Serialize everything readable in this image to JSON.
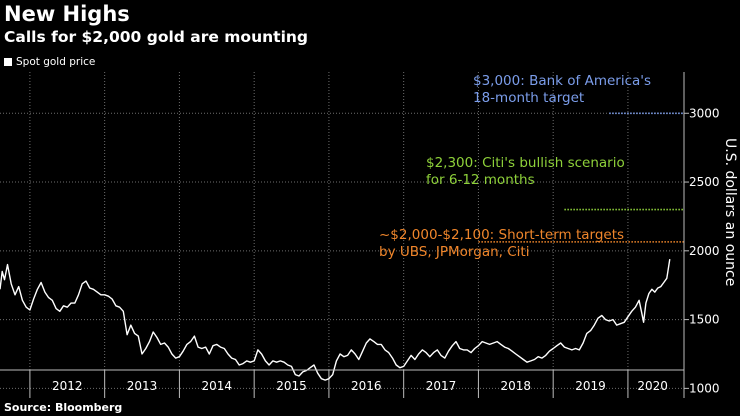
{
  "title": "New Highs",
  "subtitle": "Calls for $2,000 gold are mounting",
  "legend_label": "Spot gold price",
  "source": "Source: Bloomberg",
  "colors": {
    "background": "#000000",
    "line": "#ffffff",
    "grid": "#6e6e6e",
    "bofa": "#7b9dea",
    "citi": "#8ed13a",
    "ubs": "#f0862b"
  },
  "chart_data": {
    "type": "line",
    "title": "New Highs",
    "subtitle": "Calls for $2,000 gold are mounting",
    "ylabel": "U.S. dollars an ounce",
    "xlabel": "",
    "ylim": [
      930,
      3300
    ],
    "xlim": [
      2011.6,
      2020.75
    ],
    "y_ticks": [
      1000,
      1500,
      2000,
      2500,
      3000
    ],
    "y_tick_labels": [
      "1000",
      "1500",
      "2000",
      "2500",
      "3000"
    ],
    "x_year_boundaries": [
      2012,
      2013,
      2014,
      2015,
      2016,
      2017,
      2018,
      2019,
      2020
    ],
    "x_tick_labels": [
      {
        "label": "2012",
        "year": 2012.5
      },
      {
        "label": "2013",
        "year": 2013.5
      },
      {
        "label": "2014",
        "year": 2014.5
      },
      {
        "label": "2015",
        "year": 2015.5
      },
      {
        "label": "2016",
        "year": 2016.5
      },
      {
        "label": "2017",
        "year": 2017.5
      },
      {
        "label": "2018",
        "year": 2018.5
      },
      {
        "label": "2019",
        "year": 2019.5
      },
      {
        "label": "2020",
        "year": 2020.33
      }
    ],
    "grid": true,
    "series": [
      {
        "name": "Spot gold price",
        "points": [
          [
            2011.6,
            1720
          ],
          [
            2011.63,
            1850
          ],
          [
            2011.66,
            1790
          ],
          [
            2011.7,
            1900
          ],
          [
            2011.75,
            1760
          ],
          [
            2011.8,
            1680
          ],
          [
            2011.85,
            1740
          ],
          [
            2011.9,
            1640
          ],
          [
            2011.95,
            1590
          ],
          [
            2012.0,
            1570
          ],
          [
            2012.05,
            1650
          ],
          [
            2012.1,
            1720
          ],
          [
            2012.15,
            1770
          ],
          [
            2012.2,
            1700
          ],
          [
            2012.25,
            1660
          ],
          [
            2012.3,
            1640
          ],
          [
            2012.35,
            1580
          ],
          [
            2012.4,
            1560
          ],
          [
            2012.45,
            1600
          ],
          [
            2012.5,
            1590
          ],
          [
            2012.55,
            1620
          ],
          [
            2012.6,
            1620
          ],
          [
            2012.65,
            1680
          ],
          [
            2012.7,
            1760
          ],
          [
            2012.75,
            1780
          ],
          [
            2012.8,
            1730
          ],
          [
            2012.85,
            1720
          ],
          [
            2012.9,
            1700
          ],
          [
            2012.95,
            1680
          ],
          [
            2013.0,
            1680
          ],
          [
            2013.05,
            1670
          ],
          [
            2013.1,
            1650
          ],
          [
            2013.15,
            1600
          ],
          [
            2013.2,
            1590
          ],
          [
            2013.25,
            1560
          ],
          [
            2013.3,
            1390
          ],
          [
            2013.35,
            1460
          ],
          [
            2013.4,
            1400
          ],
          [
            2013.45,
            1380
          ],
          [
            2013.5,
            1250
          ],
          [
            2013.55,
            1290
          ],
          [
            2013.6,
            1340
          ],
          [
            2013.65,
            1410
          ],
          [
            2013.7,
            1370
          ],
          [
            2013.75,
            1320
          ],
          [
            2013.8,
            1330
          ],
          [
            2013.85,
            1300
          ],
          [
            2013.9,
            1250
          ],
          [
            2013.95,
            1220
          ],
          [
            2014.0,
            1230
          ],
          [
            2014.05,
            1270
          ],
          [
            2014.1,
            1320
          ],
          [
            2014.15,
            1340
          ],
          [
            2014.2,
            1380
          ],
          [
            2014.25,
            1300
          ],
          [
            2014.3,
            1290
          ],
          [
            2014.35,
            1300
          ],
          [
            2014.4,
            1250
          ],
          [
            2014.45,
            1310
          ],
          [
            2014.5,
            1320
          ],
          [
            2014.55,
            1300
          ],
          [
            2014.6,
            1290
          ],
          [
            2014.65,
            1250
          ],
          [
            2014.7,
            1220
          ],
          [
            2014.75,
            1210
          ],
          [
            2014.8,
            1170
          ],
          [
            2014.85,
            1180
          ],
          [
            2014.9,
            1200
          ],
          [
            2014.95,
            1190
          ],
          [
            2015.0,
            1200
          ],
          [
            2015.05,
            1280
          ],
          [
            2015.1,
            1250
          ],
          [
            2015.15,
            1200
          ],
          [
            2015.2,
            1170
          ],
          [
            2015.25,
            1200
          ],
          [
            2015.3,
            1190
          ],
          [
            2015.35,
            1200
          ],
          [
            2015.4,
            1190
          ],
          [
            2015.45,
            1170
          ],
          [
            2015.5,
            1160
          ],
          [
            2015.55,
            1100
          ],
          [
            2015.6,
            1090
          ],
          [
            2015.65,
            1120
          ],
          [
            2015.7,
            1130
          ],
          [
            2015.75,
            1150
          ],
          [
            2015.8,
            1170
          ],
          [
            2015.85,
            1110
          ],
          [
            2015.9,
            1070
          ],
          [
            2015.95,
            1060
          ],
          [
            2016.0,
            1070
          ],
          [
            2016.05,
            1100
          ],
          [
            2016.1,
            1200
          ],
          [
            2016.15,
            1250
          ],
          [
            2016.2,
            1230
          ],
          [
            2016.25,
            1240
          ],
          [
            2016.3,
            1280
          ],
          [
            2016.35,
            1250
          ],
          [
            2016.4,
            1210
          ],
          [
            2016.45,
            1270
          ],
          [
            2016.5,
            1330
          ],
          [
            2016.55,
            1360
          ],
          [
            2016.6,
            1340
          ],
          [
            2016.65,
            1320
          ],
          [
            2016.7,
            1320
          ],
          [
            2016.75,
            1280
          ],
          [
            2016.8,
            1260
          ],
          [
            2016.85,
            1220
          ],
          [
            2016.9,
            1170
          ],
          [
            2016.95,
            1150
          ],
          [
            2017.0,
            1160
          ],
          [
            2017.05,
            1200
          ],
          [
            2017.1,
            1240
          ],
          [
            2017.15,
            1210
          ],
          [
            2017.2,
            1250
          ],
          [
            2017.25,
            1280
          ],
          [
            2017.3,
            1260
          ],
          [
            2017.35,
            1230
          ],
          [
            2017.4,
            1260
          ],
          [
            2017.45,
            1280
          ],
          [
            2017.5,
            1240
          ],
          [
            2017.55,
            1220
          ],
          [
            2017.6,
            1270
          ],
          [
            2017.65,
            1310
          ],
          [
            2017.7,
            1340
          ],
          [
            2017.75,
            1290
          ],
          [
            2017.8,
            1280
          ],
          [
            2017.85,
            1280
          ],
          [
            2017.9,
            1260
          ],
          [
            2017.95,
            1290
          ],
          [
            2018.0,
            1310
          ],
          [
            2018.05,
            1340
          ],
          [
            2018.1,
            1330
          ],
          [
            2018.15,
            1320
          ],
          [
            2018.2,
            1330
          ],
          [
            2018.25,
            1340
          ],
          [
            2018.3,
            1320
          ],
          [
            2018.35,
            1300
          ],
          [
            2018.4,
            1290
          ],
          [
            2018.45,
            1270
          ],
          [
            2018.5,
            1250
          ],
          [
            2018.55,
            1230
          ],
          [
            2018.6,
            1210
          ],
          [
            2018.65,
            1190
          ],
          [
            2018.7,
            1200
          ],
          [
            2018.75,
            1210
          ],
          [
            2018.8,
            1230
          ],
          [
            2018.85,
            1220
          ],
          [
            2018.9,
            1240
          ],
          [
            2018.95,
            1270
          ],
          [
            2019.0,
            1290
          ],
          [
            2019.05,
            1310
          ],
          [
            2019.1,
            1330
          ],
          [
            2019.15,
            1300
          ],
          [
            2019.2,
            1290
          ],
          [
            2019.25,
            1280
          ],
          [
            2019.3,
            1290
          ],
          [
            2019.35,
            1280
          ],
          [
            2019.4,
            1330
          ],
          [
            2019.45,
            1400
          ],
          [
            2019.5,
            1420
          ],
          [
            2019.55,
            1460
          ],
          [
            2019.6,
            1510
          ],
          [
            2019.65,
            1530
          ],
          [
            2019.7,
            1500
          ],
          [
            2019.75,
            1490
          ],
          [
            2019.8,
            1500
          ],
          [
            2019.85,
            1460
          ],
          [
            2019.9,
            1470
          ],
          [
            2019.95,
            1480
          ],
          [
            2020.0,
            1520
          ],
          [
            2020.05,
            1560
          ],
          [
            2020.1,
            1590
          ],
          [
            2020.15,
            1640
          ],
          [
            2020.18,
            1560
          ],
          [
            2020.21,
            1480
          ],
          [
            2020.24,
            1620
          ],
          [
            2020.28,
            1690
          ],
          [
            2020.32,
            1720
          ],
          [
            2020.36,
            1700
          ],
          [
            2020.4,
            1730
          ],
          [
            2020.44,
            1740
          ],
          [
            2020.48,
            1770
          ],
          [
            2020.52,
            1800
          ],
          [
            2020.56,
            1940
          ]
        ]
      }
    ],
    "reference_lines": [
      {
        "name": "bofa",
        "value": 3000,
        "x_start": 2019.75,
        "x_end": 2020.75,
        "color": "#7b9dea"
      },
      {
        "name": "citi",
        "value": 2300,
        "x_start": 2019.15,
        "x_end": 2020.75,
        "color": "#8ed13a"
      },
      {
        "name": "ubs",
        "value": 2065,
        "x_start": 2018.0,
        "x_end": 2020.75,
        "color": "#f0862b"
      }
    ],
    "annotations": [
      {
        "name": "bofa",
        "lines": [
          "$3,000: Bank of America's",
          "18-month target"
        ],
        "color": "#7b9dea"
      },
      {
        "name": "citi",
        "lines": [
          "$2,300: Citi's bullish scenario",
          "for 6-12 months"
        ],
        "color": "#8ed13a"
      },
      {
        "name": "ubs",
        "lines": [
          "~$2,000-$2,100: Short-term targets",
          "by UBS, JPMorgan, Citi"
        ],
        "color": "#f0862b"
      }
    ]
  }
}
